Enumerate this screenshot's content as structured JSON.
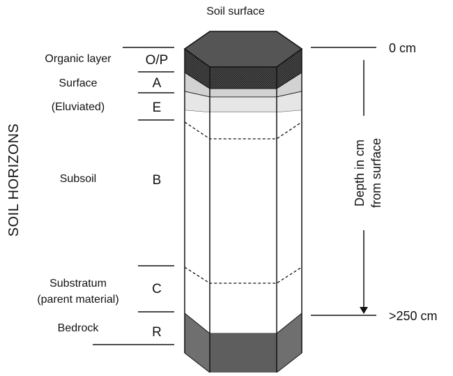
{
  "diagram": {
    "top_label": "Soil surface",
    "side_title": "SOIL HORIZONS",
    "axis": {
      "top": "0 cm",
      "bottom": ">250 cm",
      "caption_line1": "Depth in cm",
      "caption_line2": "from surface"
    },
    "horizons": [
      {
        "code": "O/P",
        "name": "Organic layer"
      },
      {
        "code": "A",
        "name": "Surface"
      },
      {
        "code": "E",
        "name": "(Eluviated)"
      },
      {
        "code": "B",
        "name": "Subsoil"
      },
      {
        "code": "C",
        "name": "Substratum",
        "name_line2": "(parent material)"
      },
      {
        "code": "R",
        "name": "Bedrock"
      }
    ],
    "colors": {
      "top_face": "#555555",
      "organic": "#4a4a4a",
      "surface_a": "#d2d2d2",
      "eluviated_e": "#e6e6e6",
      "subsoil": "#ffffff",
      "bedrock": "#6f6f6f",
      "outline": "#111111"
    }
  }
}
